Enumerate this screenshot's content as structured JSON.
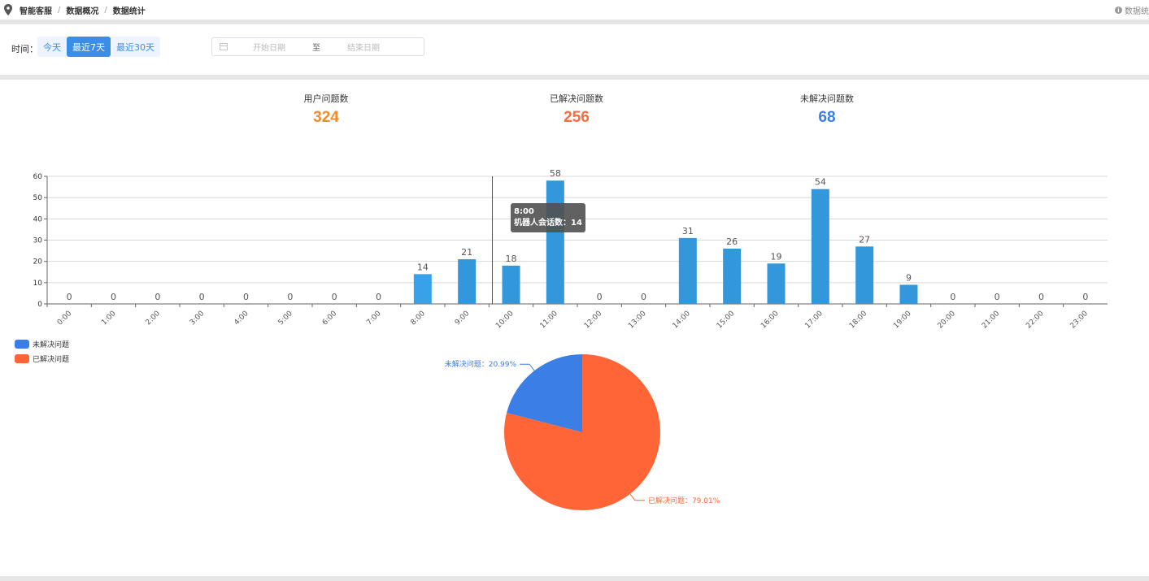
{
  "breadcrumb": {
    "items": [
      "智能客服",
      "数据概况",
      "数据统计"
    ],
    "right_text": "数据统"
  },
  "filter": {
    "time_label": "时间：",
    "buttons": [
      "今天",
      "最近7天",
      "最近30天"
    ],
    "active_button": "最近7天",
    "start_placeholder": "开始日期",
    "range_separator": "至",
    "end_placeholder": "结束日期"
  },
  "stats": [
    {
      "label": "用户问题数",
      "value": "324",
      "color": "#f08c2b"
    },
    {
      "label": "已解决问题数",
      "value": "256",
      "color": "#ff6a3d"
    },
    {
      "label": "未解决问题数",
      "value": "68",
      "color": "#3a7ee6"
    }
  ],
  "tooltip": {
    "title": "8:00",
    "text": "机器人会话数：14"
  },
  "legend": [
    {
      "label": "未解决问题",
      "color": "#3a7ee6"
    },
    {
      "label": "已解决问题",
      "color": "#ff6536"
    }
  ],
  "chart_data": [
    {
      "type": "bar",
      "categories": [
        "0:00",
        "1:00",
        "2:00",
        "3:00",
        "4:00",
        "5:00",
        "6:00",
        "7:00",
        "8:00",
        "9:00",
        "10:00",
        "11:00",
        "12:00",
        "13:00",
        "14:00",
        "15:00",
        "16:00",
        "17:00",
        "18:00",
        "19:00",
        "20:00",
        "21:00",
        "22:00",
        "23:00"
      ],
      "values": [
        0,
        0,
        0,
        0,
        0,
        0,
        0,
        0,
        14,
        21,
        18,
        58,
        0,
        0,
        31,
        26,
        19,
        54,
        27,
        9,
        0,
        0,
        0,
        0
      ],
      "ylim": [
        0,
        60
      ],
      "yticks": [
        0,
        10,
        20,
        30,
        40,
        50,
        60
      ],
      "grid": true,
      "bar_color": "#3398db",
      "highlight_category": "8:00",
      "highlight_color": "#37a2ea"
    },
    {
      "type": "pie",
      "slices": [
        {
          "name": "未解决问题",
          "value": 20.99,
          "label": "未解决问题：20.99%",
          "color": "#3a7ee6"
        },
        {
          "name": "已解决问题",
          "value": 79.01,
          "label": "已解决问题：79.01%",
          "color": "#ff6536"
        }
      ]
    }
  ]
}
